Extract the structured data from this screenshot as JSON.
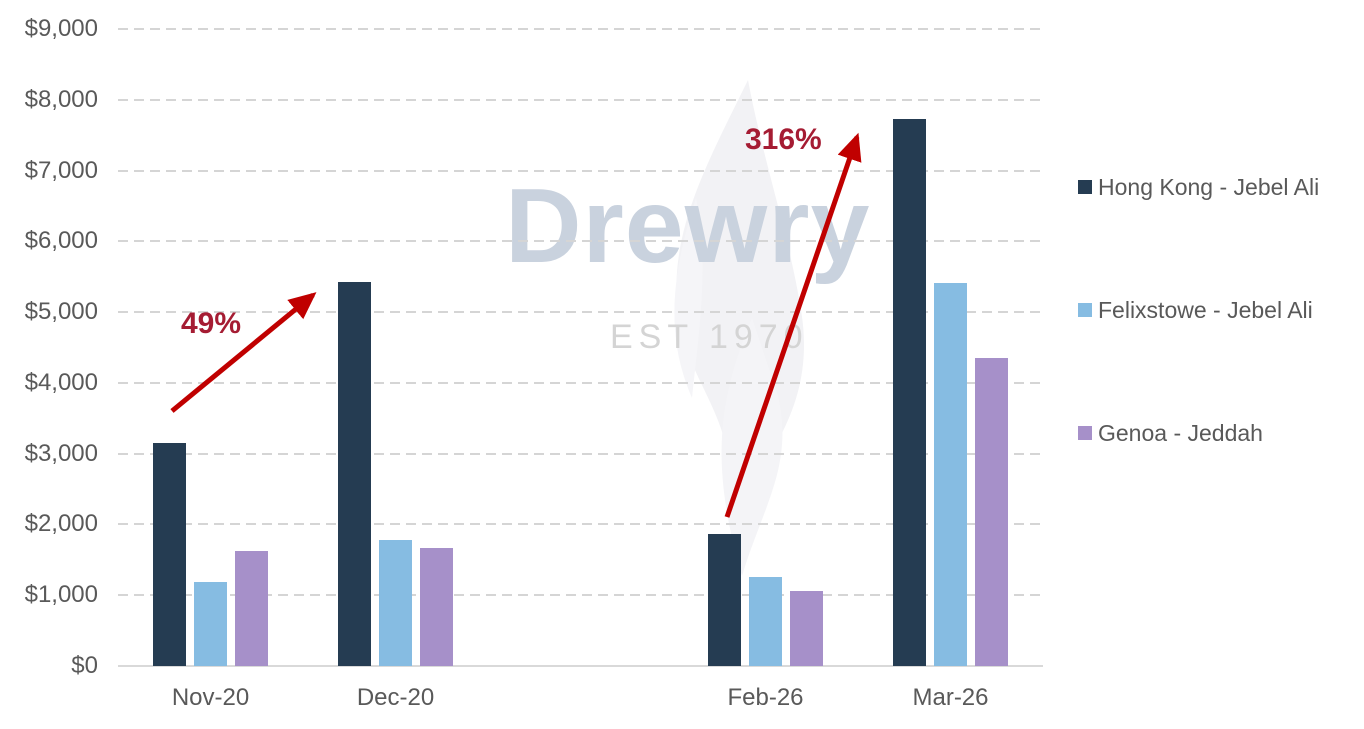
{
  "chart_data": {
    "type": "bar",
    "title": "",
    "xlabel": "",
    "ylabel": "",
    "categories": [
      "Nov-20",
      "Dec-20",
      "Feb-26",
      "Mar-26"
    ],
    "series": [
      {
        "name": "Hong Kong - Jebel Ali",
        "color": "#253c52",
        "values": [
          3150,
          5420,
          1870,
          7730
        ]
      },
      {
        "name": "Felixstowe - Jebel Ali",
        "color": "#86bce2",
        "values": [
          1180,
          1780,
          1260,
          5410
        ]
      },
      {
        "name": "Genoa - Jeddah",
        "color": "#a690c9",
        "values": [
          1630,
          1670,
          1060,
          4350
        ]
      }
    ],
    "ylim": [
      0,
      9000
    ],
    "ytick_step": 1000,
    "ytick_prefix": "$",
    "grid": "dashed-horizontal",
    "legend_position": "right",
    "category_gap_after": "Dec-20",
    "annotations": [
      {
        "label": "49%",
        "from_category": "Nov-20",
        "to_category": "Dec-20",
        "text_color": "#a51c33",
        "arrow_color": "#c00000"
      },
      {
        "label": "316%",
        "from_category": "Feb-26",
        "to_category": "Mar-26",
        "text_color": "#a51c33",
        "arrow_color": "#c00000"
      }
    ]
  },
  "watermark": {
    "brand": "Drewry",
    "tagline": "EST 1970"
  },
  "colors": {
    "axis_text": "#595959",
    "gridline": "#d5d5d5",
    "axis_line": "#d9d9d9",
    "watermark_brand": "#c9d2de",
    "watermark_tagline": "#d4d4d4",
    "annotation_text": "#a51c33",
    "arrow": "#c00000"
  }
}
